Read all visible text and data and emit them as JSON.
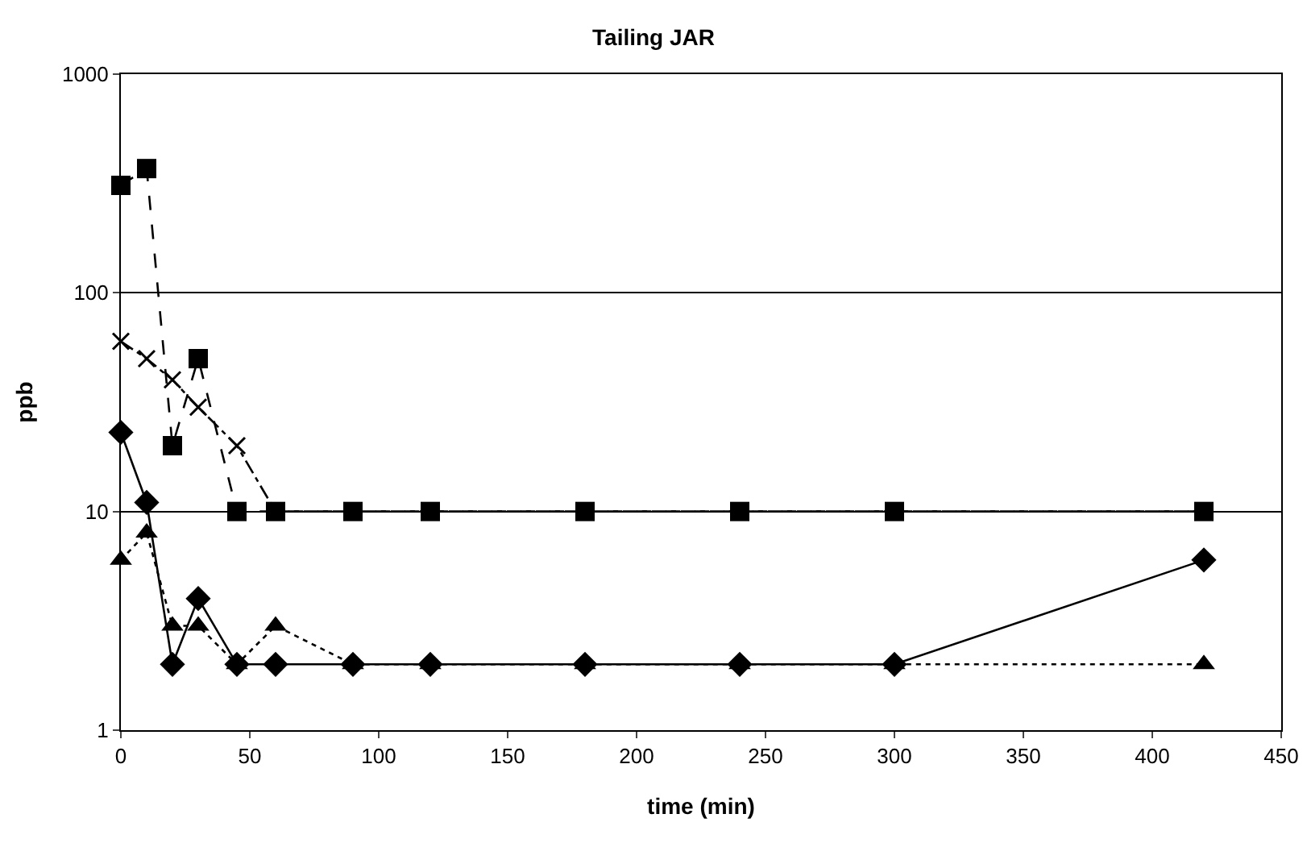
{
  "chart_data": {
    "type": "line",
    "title": "Tailing JAR",
    "xlabel": "time (min)",
    "ylabel": "ppb",
    "x": [
      0,
      10,
      20,
      30,
      45,
      60,
      90,
      120,
      180,
      240,
      300,
      420
    ],
    "series": [
      {
        "color": "#000000",
        "marker": "diamond",
        "line_style": "solid",
        "values": [
          23,
          11,
          2,
          4,
          2,
          2,
          2,
          2,
          2,
          2,
          2,
          6
        ]
      },
      {
        "color": "#000000",
        "marker": "square",
        "line_style": "dashed",
        "values": [
          310,
          370,
          20,
          50,
          10,
          10,
          10,
          10,
          10,
          10,
          10,
          10
        ]
      },
      {
        "color": "#000000",
        "marker": "triangle",
        "line_style": "dotted",
        "values": [
          6,
          8,
          3,
          3,
          2,
          3,
          2,
          2,
          2,
          2,
          2,
          2
        ]
      },
      {
        "color": "#000000",
        "marker": "cross",
        "line_style": "dashdot",
        "values": [
          60,
          50,
          40,
          30,
          20,
          10,
          10,
          10,
          10,
          10,
          10,
          10
        ]
      }
    ],
    "log": "y",
    "grid": "y",
    "xlim": [
      0,
      450
    ],
    "xticks": [
      0,
      50,
      100,
      150,
      200,
      250,
      300,
      350,
      400,
      450
    ],
    "ylim": [
      1,
      1000
    ],
    "yticks": [
      1,
      10,
      100,
      1000
    ]
  }
}
